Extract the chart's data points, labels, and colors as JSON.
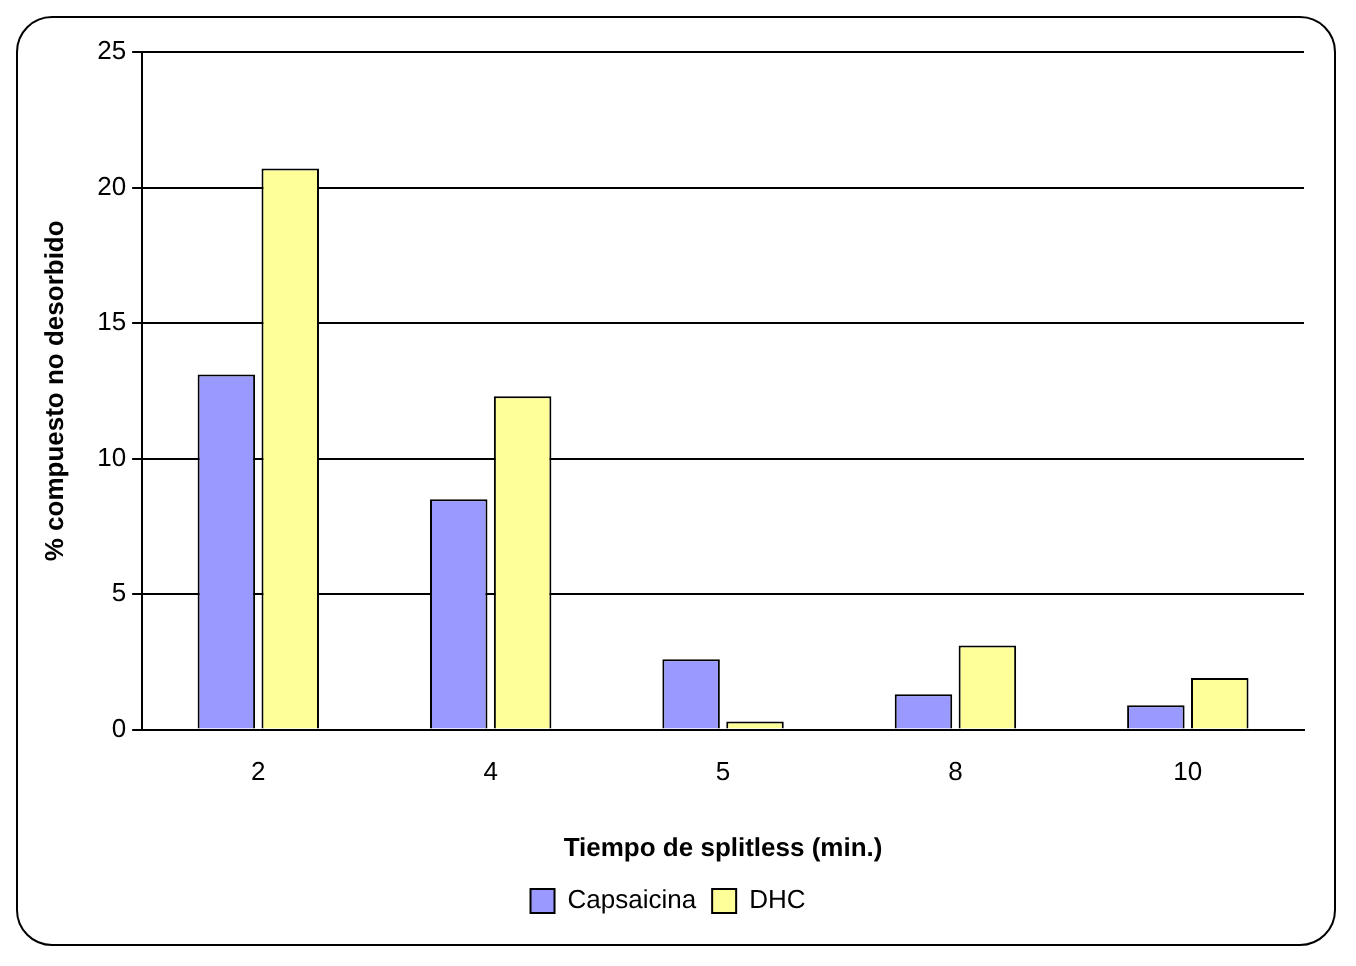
{
  "chart_data": {
    "type": "bar",
    "xlabel": "Tiempo de splitless (min.)",
    "ylabel": "% compuesto no desorbido",
    "categories": [
      "2",
      "4",
      "5",
      "8",
      "10"
    ],
    "series": [
      {
        "name": "Capsaicina",
        "color": "#9999ff",
        "values": [
          13.1,
          8.5,
          2.6,
          1.3,
          0.9
        ]
      },
      {
        "name": "DHC",
        "color": "#ffff99",
        "values": [
          20.7,
          12.3,
          0.3,
          3.1,
          1.9
        ]
      }
    ],
    "ylim": [
      0,
      25
    ],
    "yticks": [
      0,
      5,
      10,
      15,
      20,
      25
    ],
    "grid": "y",
    "legend": "bottom"
  }
}
